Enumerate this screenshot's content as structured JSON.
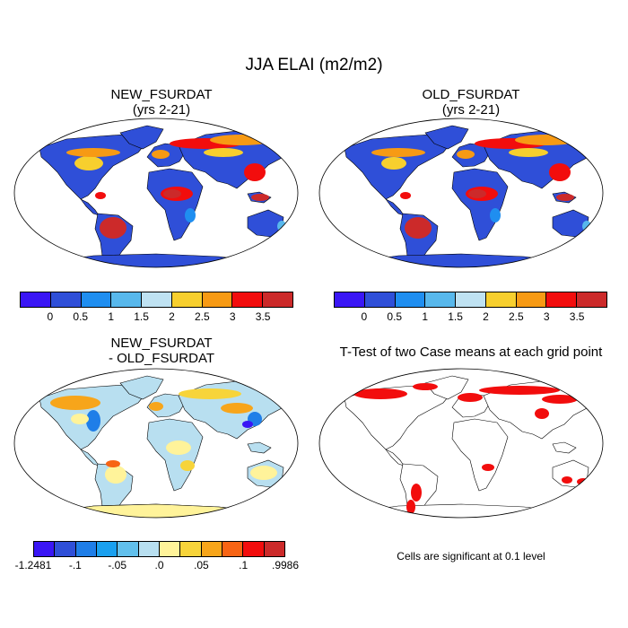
{
  "figure": {
    "title": "JJA ELAI (m2/m2)"
  },
  "panels": {
    "new": {
      "title_line1": "NEW_FSURDAT",
      "title_line2": "(yrs 2-21)"
    },
    "old": {
      "title_line1": "OLD_FSURDAT",
      "title_line2": "(yrs 2-21)"
    },
    "diff": {
      "title_line1": "NEW_FSURDAT",
      "title_line2": "- OLD_FSURDAT"
    },
    "ttest": {
      "title": "T-Test of two Case means at each grid point",
      "note": "Cells are significant at 0.1 level"
    }
  },
  "colorbars": {
    "absolute": {
      "colors": [
        "#3a16f5",
        "#2f4fd8",
        "#1f8ef0",
        "#58b8ec",
        "#bfe2f2",
        "#f7cf2e",
        "#f79a14",
        "#f20d0d",
        "#cc2a2a"
      ],
      "labels": [
        "0",
        "0.5",
        "1",
        "1.5",
        "2",
        "2.5",
        "3",
        "3.5"
      ]
    },
    "difference": {
      "colors": [
        "#3a16f5",
        "#2f4fd8",
        "#1f7ee8",
        "#1aa0ef",
        "#62c0ec",
        "#b8dff0",
        "#fff39a",
        "#f7d43a",
        "#f7a51a",
        "#f76414",
        "#f20d0d",
        "#cc2a2a"
      ],
      "labels": [
        "-1.2481",
        "-.1",
        "-.05",
        ".0",
        ".05",
        ".1",
        ".9986"
      ]
    }
  }
}
